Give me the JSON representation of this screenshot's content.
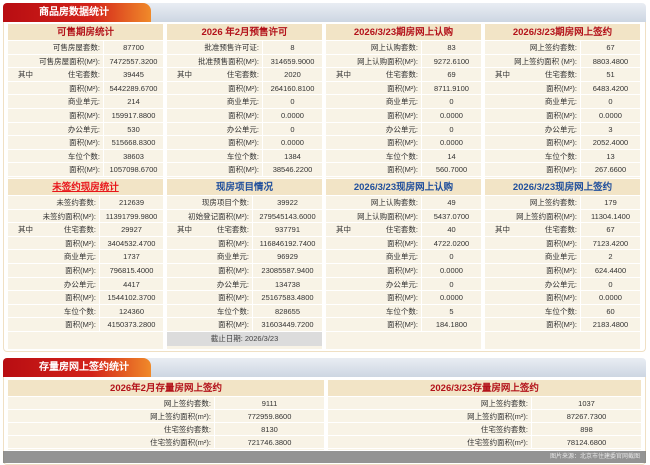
{
  "colors": {
    "red": "#b3121a",
    "blue": "#1f4e9c",
    "link_red": "#e8161b"
  },
  "section1": {
    "title": "商品房数据统计",
    "panels": [
      {
        "title": "可售期房统计",
        "color": "red",
        "rows": [
          [
            "",
            "可售房屋套数:",
            "87700"
          ],
          [
            "",
            "可售房屋面积(M²):",
            "7472557.3200"
          ],
          [
            "其中",
            "住宅套数:",
            "39445"
          ],
          [
            "",
            "面积(M²):",
            "5442289.6700"
          ],
          [
            "",
            "商业单元:",
            "214"
          ],
          [
            "",
            "面积(M²):",
            "159917.8800"
          ],
          [
            "",
            "办公单元:",
            "530"
          ],
          [
            "",
            "面积(M²):",
            "515668.8300"
          ],
          [
            "",
            "车位个数:",
            "38603"
          ],
          [
            "",
            "面积(M²):",
            "1057098.6700"
          ]
        ]
      },
      {
        "title": "2026 年2月预售许可",
        "color": "red",
        "rows": [
          [
            "",
            "批准预售许可证:",
            "8"
          ],
          [
            "",
            "批准预售面积(M²):",
            "314659.9000"
          ],
          [
            "其中",
            "住宅套数:",
            "2020"
          ],
          [
            "",
            "面积(M²):",
            "264160.8100"
          ],
          [
            "",
            "商业单元:",
            "0"
          ],
          [
            "",
            "面积(M²):",
            "0.0000"
          ],
          [
            "",
            "办公单元:",
            "0"
          ],
          [
            "",
            "面积(M²):",
            "0.0000"
          ],
          [
            "",
            "车位个数:",
            "1384"
          ],
          [
            "",
            "面积(M²):",
            "38546.2200"
          ]
        ]
      },
      {
        "title": "2026/3/23期房网上认购",
        "color": "red",
        "rows": [
          [
            "",
            "网上认购套数:",
            "83"
          ],
          [
            "",
            "网上认购面积(M²):",
            "9272.6100"
          ],
          [
            "其中",
            "住宅套数:",
            "69"
          ],
          [
            "",
            "面积(M²):",
            "8711.9100"
          ],
          [
            "",
            "商业单元:",
            "0"
          ],
          [
            "",
            "面积(M²):",
            "0.0000"
          ],
          [
            "",
            "办公单元:",
            "0"
          ],
          [
            "",
            "面积(M²):",
            "0.0000"
          ],
          [
            "",
            "车位个数:",
            "14"
          ],
          [
            "",
            "面积(M²):",
            "560.7000"
          ]
        ]
      },
      {
        "title": "2026/3/23期房网上签约",
        "color": "red",
        "rows": [
          [
            "",
            "网上签约套数:",
            "67"
          ],
          [
            "",
            "网上签约面积 (M²):",
            "8803.4800"
          ],
          [
            "其中",
            "住宅套数:",
            "51"
          ],
          [
            "",
            "面积(M²):",
            "6483.4200"
          ],
          [
            "",
            "商业单元:",
            "0"
          ],
          [
            "",
            "面积(M²):",
            "0.0000"
          ],
          [
            "",
            "办公单元:",
            "3"
          ],
          [
            "",
            "面积(M²):",
            "2052.4000"
          ],
          [
            "",
            "车位个数:",
            "13"
          ],
          [
            "",
            "面积(M²):",
            "267.6600"
          ]
        ]
      },
      {
        "title": "未签约现房统计",
        "color": "link_red",
        "rows": [
          [
            "",
            "未签约套数:",
            "212639"
          ],
          [
            "",
            "未签约面积(M²):",
            "11391799.9800"
          ],
          [
            "其中",
            "住宅套数:",
            "29927"
          ],
          [
            "",
            "面积(M²):",
            "3404532.4700"
          ],
          [
            "",
            "商业单元:",
            "1737"
          ],
          [
            "",
            "面积(M²):",
            "796815.4000"
          ],
          [
            "",
            "办公单元:",
            "4417"
          ],
          [
            "",
            "面积(M²):",
            "1544102.3700"
          ],
          [
            "",
            "车位个数:",
            "124360"
          ],
          [
            "",
            "面积(M²):",
            "4150373.2800"
          ]
        ]
      },
      {
        "title": "现房项目情况",
        "color": "blue",
        "rows": [
          [
            "",
            "现房项目个数:",
            "39922"
          ],
          [
            "",
            "初始登记面积(M²):",
            "279545143.6000"
          ],
          [
            "其中",
            "住宅套数:",
            "937791"
          ],
          [
            "",
            "面积(M²):",
            "116846192.7400"
          ],
          [
            "",
            "商业单元:",
            "96929"
          ],
          [
            "",
            "面积(M²):",
            "23085587.9400"
          ],
          [
            "",
            "办公单元:",
            "134738"
          ],
          [
            "",
            "面积(M²):",
            "25167583.4800"
          ],
          [
            "",
            "车位个数:",
            "828655"
          ],
          [
            "",
            "面积(M²):",
            "31603449.7200"
          ]
        ],
        "footer": "截止日期: 2026/3/23"
      },
      {
        "title": "2026/3/23现房网上认购",
        "color": "blue",
        "rows": [
          [
            "",
            "网上认购套数:",
            "49"
          ],
          [
            "",
            "网上认购面积(M²):",
            "5437.0700"
          ],
          [
            "其中",
            "住宅套数:",
            "40"
          ],
          [
            "",
            "面积(M²):",
            "4722.0200"
          ],
          [
            "",
            "商业单元:",
            "0"
          ],
          [
            "",
            "面积(M²):",
            "0.0000"
          ],
          [
            "",
            "办公单元:",
            "0"
          ],
          [
            "",
            "面积(M²):",
            "0.0000"
          ],
          [
            "",
            "车位个数:",
            "5"
          ],
          [
            "",
            "面积(M²):",
            "184.1800"
          ]
        ]
      },
      {
        "title": "2026/3/23现房网上签约",
        "color": "blue",
        "rows": [
          [
            "",
            "网上签约套数:",
            "179"
          ],
          [
            "",
            "网上签约面积(M²):",
            "11304.1400"
          ],
          [
            "其中",
            "住宅套数:",
            "67"
          ],
          [
            "",
            "面积(M²):",
            "7123.4200"
          ],
          [
            "",
            "商业单元:",
            "2"
          ],
          [
            "",
            "面积(M²):",
            "624.4400"
          ],
          [
            "",
            "办公单元:",
            "0"
          ],
          [
            "",
            "面积(M²):",
            "0.0000"
          ],
          [
            "",
            "车位个数:",
            "60"
          ],
          [
            "",
            "面积(M²):",
            "2183.4800"
          ]
        ]
      }
    ]
  },
  "section2": {
    "title": "存量房网上签约统计",
    "panels": [
      {
        "title": "2026年2月存量房网上签约",
        "color": "red",
        "rows": [
          [
            "",
            "网上签约套数:",
            "9111"
          ],
          [
            "",
            "网上签约面积(m²):",
            "772959.8600"
          ],
          [
            "",
            "住宅签约套数:",
            "8130"
          ],
          [
            "",
            "住宅签约面积(m²):",
            "721746.3800"
          ]
        ]
      },
      {
        "title": "2026/3/23存量房网上签约",
        "color": "red",
        "rows": [
          [
            "",
            "网上签约套数:",
            "1037"
          ],
          [
            "",
            "网上签约面积(m²):",
            "87267.7300"
          ],
          [
            "",
            "住宅签约套数:",
            "898"
          ],
          [
            "",
            "住宅签约面积(m²):",
            "78124.6800"
          ]
        ]
      }
    ]
  },
  "watermark": "图片来源：北京市住建委官网截图"
}
